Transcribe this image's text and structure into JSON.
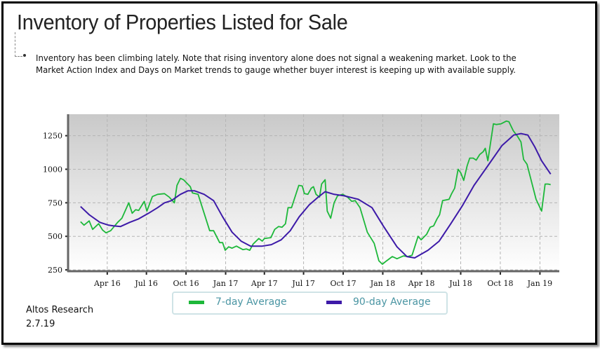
{
  "header": {
    "title": "Inventory of Properties Listed for Sale",
    "note": "Inventory has been climbing lately. Note that rising inventory alone does not signal a weakening market. Look to the Market Action Index and Days on Market trends to gauge whether buyer interest is keeping up with available supply."
  },
  "footer": {
    "source": "Altos Research",
    "date": "2.7.19"
  },
  "chart_data": {
    "type": "line",
    "title": "",
    "xlabel": "",
    "ylabel": "",
    "ylim": [
      240,
      1410
    ],
    "xlim": [
      "2016-01-01",
      "2019-02-15"
    ],
    "grid": true,
    "legend_position": "bottom",
    "y_ticks": [
      250,
      500,
      750,
      1000,
      1250
    ],
    "x_ticks": [
      {
        "date": "2016-04-01",
        "label": "Apr 16"
      },
      {
        "date": "2016-07-01",
        "label": "Jul 16"
      },
      {
        "date": "2016-10-01",
        "label": "Oct 16"
      },
      {
        "date": "2017-01-01",
        "label": "Jan 17"
      },
      {
        "date": "2017-04-01",
        "label": "Apr 17"
      },
      {
        "date": "2017-07-01",
        "label": "Jul 17"
      },
      {
        "date": "2017-10-01",
        "label": "Oct 17"
      },
      {
        "date": "2018-01-01",
        "label": "Jan 18"
      },
      {
        "date": "2018-04-01",
        "label": "Apr 18"
      },
      {
        "date": "2018-07-01",
        "label": "Jul 18"
      },
      {
        "date": "2018-10-01",
        "label": "Oct 18"
      },
      {
        "date": "2019-01-01",
        "label": "Jan 19"
      }
    ],
    "series": [
      {
        "name": "7-day Average",
        "color": "#1db83a",
        "x": [
          "2016-01-30",
          "2016-02-07",
          "2016-02-19",
          "2016-02-27",
          "2016-03-12",
          "2016-03-21",
          "2016-03-29",
          "2016-04-09",
          "2016-04-25",
          "2016-05-05",
          "2016-05-21",
          "2016-05-29",
          "2016-06-06",
          "2016-06-13",
          "2016-06-26",
          "2016-07-02",
          "2016-07-15",
          "2016-07-27",
          "2016-08-12",
          "2016-08-23",
          "2016-09-04",
          "2016-09-10",
          "2016-09-18",
          "2016-09-25",
          "2016-10-11",
          "2016-10-16",
          "2016-10-29",
          "2016-11-12",
          "2016-11-25",
          "2016-12-04",
          "2016-12-18",
          "2016-12-25",
          "2016-12-31",
          "2017-01-08",
          "2017-01-16",
          "2017-01-26",
          "2017-02-10",
          "2017-02-18",
          "2017-02-26",
          "2017-03-06",
          "2017-03-19",
          "2017-03-27",
          "2017-04-01",
          "2017-04-16",
          "2017-04-25",
          "2017-05-04",
          "2017-05-12",
          "2017-05-20",
          "2017-05-26",
          "2017-06-03",
          "2017-06-20",
          "2017-06-28",
          "2017-07-03",
          "2017-07-11",
          "2017-07-19",
          "2017-07-24",
          "2017-07-30",
          "2017-08-07",
          "2017-08-12",
          "2017-08-20",
          "2017-08-25",
          "2017-09-02",
          "2017-09-10",
          "2017-09-18",
          "2017-09-30",
          "2017-10-11",
          "2017-10-21",
          "2017-10-29",
          "2017-11-09",
          "2017-11-26",
          "2017-12-12",
          "2017-12-23",
          "2017-12-31",
          "2018-01-10",
          "2018-01-23",
          "2018-02-03",
          "2018-02-18",
          "2018-02-28",
          "2018-03-10",
          "2018-03-24",
          "2018-03-31",
          "2018-04-13",
          "2018-04-21",
          "2018-04-29",
          "2018-05-07",
          "2018-05-13",
          "2018-05-20",
          "2018-06-04",
          "2018-06-10",
          "2018-06-17",
          "2018-06-25",
          "2018-07-01",
          "2018-07-08",
          "2018-07-16",
          "2018-07-22",
          "2018-07-30",
          "2018-08-06",
          "2018-08-14",
          "2018-08-22",
          "2018-08-27",
          "2018-09-02",
          "2018-09-15",
          "2018-09-22",
          "2018-10-03",
          "2018-10-15",
          "2018-10-21",
          "2018-10-31",
          "2018-11-10",
          "2018-11-18",
          "2018-11-24",
          "2018-12-02",
          "2018-12-23",
          "2019-01-05",
          "2019-01-13",
          "2019-01-20",
          "2019-01-26"
        ],
        "values": [
          609,
          583,
          615,
          552,
          594,
          547,
          526,
          542,
          604,
          635,
          750,
          672,
          698,
          693,
          760,
          688,
          797,
          813,
          818,
          792,
          750,
          880,
          932,
          922,
          870,
          823,
          813,
          672,
          542,
          542,
          453,
          453,
          396,
          422,
          412,
          427,
          401,
          406,
          396,
          443,
          484,
          464,
          484,
          490,
          552,
          573,
          568,
          594,
          714,
          714,
          880,
          875,
          818,
          813,
          859,
          870,
          813,
          792,
          890,
          922,
          688,
          635,
          750,
          802,
          813,
          792,
          760,
          766,
          714,
          531,
          448,
          318,
          292,
          318,
          349,
          333,
          354,
          349,
          359,
          500,
          474,
          516,
          568,
          578,
          630,
          661,
          766,
          776,
          818,
          859,
          1000,
          974,
          917,
          1026,
          1083,
          1083,
          1068,
          1109,
          1130,
          1156,
          1063,
          1339,
          1333,
          1339,
          1359,
          1354,
          1287,
          1245,
          1203,
          1073,
          1037,
          776,
          688,
          890,
          890,
          885
        ]
      },
      {
        "name": "90-day Average",
        "color": "#3d1aa8",
        "x": [
          "2016-01-30",
          "2016-02-19",
          "2016-03-15",
          "2016-04-04",
          "2016-04-15",
          "2016-05-02",
          "2016-05-23",
          "2016-06-13",
          "2016-07-06",
          "2016-07-27",
          "2016-08-12",
          "2016-08-28",
          "2016-09-18",
          "2016-10-05",
          "2016-10-21",
          "2016-11-12",
          "2016-12-04",
          "2016-12-25",
          "2017-01-16",
          "2017-02-06",
          "2017-02-28",
          "2017-03-27",
          "2017-04-17",
          "2017-05-10",
          "2017-05-31",
          "2017-06-21",
          "2017-07-14",
          "2017-08-04",
          "2017-08-20",
          "2017-09-10",
          "2017-10-03",
          "2017-11-05",
          "2017-12-07",
          "2018-01-02",
          "2018-02-03",
          "2018-02-26",
          "2018-03-16",
          "2018-04-16",
          "2018-05-12",
          "2018-06-08",
          "2018-07-06",
          "2018-08-01",
          "2018-09-02",
          "2018-10-05",
          "2018-11-01",
          "2018-11-18",
          "2018-12-04",
          "2018-12-20",
          "2019-01-05",
          "2019-01-26"
        ],
        "values": [
          722,
          661,
          604,
          583,
          578,
          573,
          604,
          630,
          672,
          714,
          750,
          766,
          813,
          839,
          839,
          813,
          766,
          646,
          531,
          464,
          427,
          427,
          438,
          474,
          542,
          646,
          734,
          792,
          833,
          813,
          802,
          776,
          714,
          578,
          422,
          349,
          339,
          396,
          464,
          594,
          734,
          880,
          1026,
          1177,
          1255,
          1266,
          1255,
          1167,
          1063,
          964
        ]
      }
    ]
  }
}
